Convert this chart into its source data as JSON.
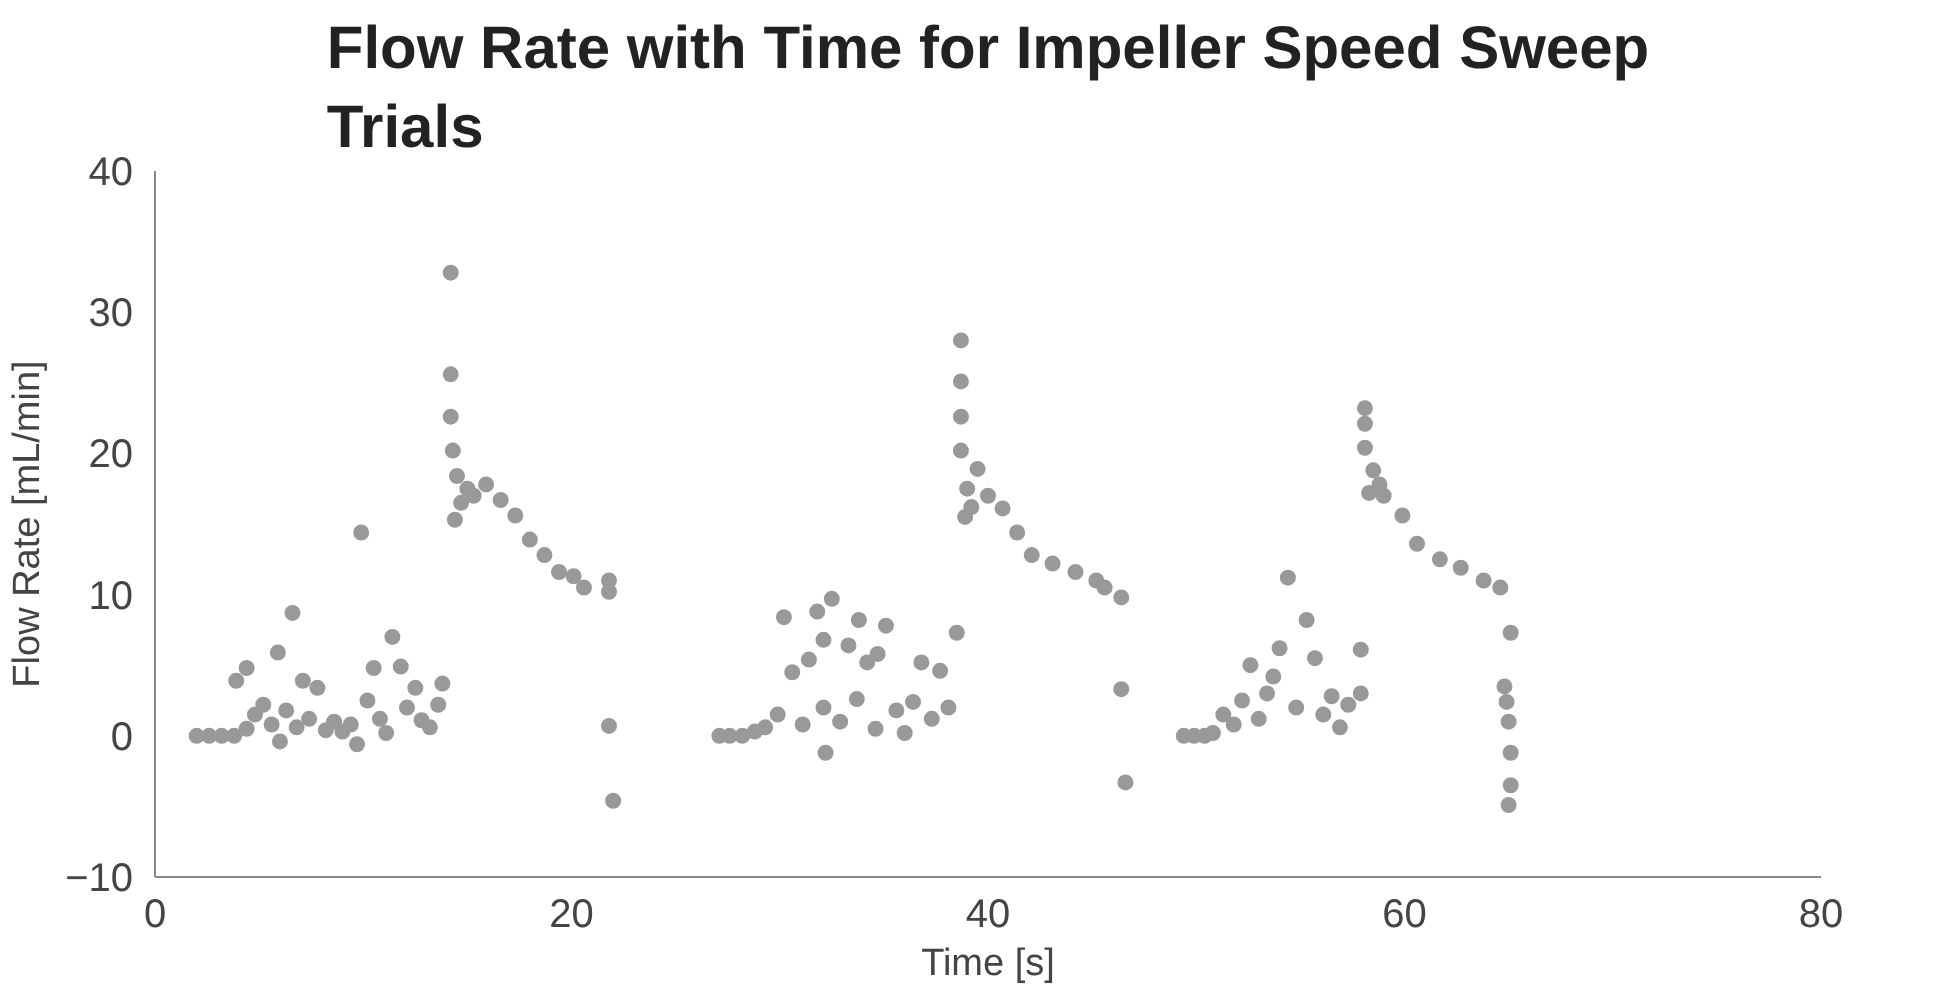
{
  "chart_data": {
    "type": "scatter",
    "title": "Flow Rate with Time for Impeller Speed Sweep Trials",
    "xlabel": "Time [s]",
    "ylabel": "Flow Rate [mL/min]",
    "xlim": [
      0,
      80
    ],
    "ylim": [
      -10,
      40
    ],
    "xticks": [
      0,
      20,
      40,
      60,
      80
    ],
    "yticks": [
      -10,
      0,
      10,
      20,
      30,
      40
    ],
    "grid": false,
    "marker": "circle",
    "series": [
      {
        "color": "#999999",
        "x": [
          2.0,
          2.6,
          3.2,
          3.8,
          4.4,
          3.9,
          4.4,
          4.8,
          5.2,
          5.6,
          5.9,
          6.0,
          6.3,
          6.6,
          6.8,
          7.1,
          7.4,
          7.8,
          8.2,
          8.6,
          9.0,
          9.4,
          9.7,
          9.9,
          10.2,
          10.5,
          10.8,
          11.1,
          11.4,
          11.8,
          12.1,
          12.5,
          12.8,
          13.2,
          13.8,
          13.6,
          14.2,
          14.2,
          14.2,
          14.3,
          14.4,
          14.5,
          14.7,
          15.0,
          15.3,
          15.9,
          16.6,
          17.3,
          18.0,
          18.7,
          19.4,
          20.1,
          20.6,
          21.8,
          21.8,
          21.8,
          22.0,
          27.1,
          27.6,
          28.2,
          28.8,
          29.3,
          29.9,
          30.2,
          30.6,
          31.1,
          31.4,
          31.8,
          32.1,
          32.1,
          32.2,
          32.5,
          32.9,
          33.3,
          33.7,
          33.8,
          34.2,
          34.6,
          34.7,
          35.1,
          35.6,
          36.0,
          36.4,
          36.8,
          37.3,
          37.7,
          38.1,
          38.5,
          38.7,
          38.7,
          38.7,
          38.7,
          38.9,
          39.0,
          39.2,
          39.5,
          40.0,
          40.7,
          41.4,
          42.1,
          43.1,
          44.2,
          45.2,
          45.6,
          46.4,
          46.4,
          46.6,
          49.4,
          49.9,
          50.4,
          50.8,
          51.3,
          51.8,
          52.2,
          52.6,
          53.0,
          53.4,
          53.7,
          54.0,
          54.4,
          54.8,
          55.3,
          55.7,
          56.1,
          56.5,
          56.9,
          57.3,
          57.9,
          57.9,
          58.1,
          58.1,
          58.1,
          58.3,
          58.5,
          58.8,
          59.0,
          59.9,
          60.6,
          61.7,
          62.7,
          63.8,
          64.6,
          64.8,
          64.9,
          65.0,
          65.1,
          65.1,
          65.1,
          65.0
        ],
        "values": [
          0,
          0,
          0,
          0,
          0.5,
          3.9,
          4.8,
          1.5,
          2.2,
          0.8,
          5.9,
          -0.4,
          1.8,
          8.7,
          0.6,
          3.9,
          1.2,
          3.4,
          0.4,
          1.0,
          0.3,
          0.8,
          -0.6,
          14.4,
          2.5,
          4.8,
          1.2,
          0.2,
          7.0,
          4.9,
          2.0,
          3.4,
          1.1,
          0.6,
          3.7,
          2.2,
          32.8,
          25.6,
          22.6,
          20.2,
          15.3,
          18.4,
          16.5,
          17.5,
          17.0,
          17.8,
          16.7,
          15.6,
          13.9,
          12.8,
          11.6,
          11.3,
          10.5,
          11.0,
          10.2,
          0.7,
          -4.6,
          0,
          0,
          0,
          0.3,
          0.6,
          1.5,
          8.4,
          4.5,
          0.8,
          5.4,
          8.8,
          2.0,
          6.8,
          -1.2,
          9.7,
          1.0,
          6.4,
          2.6,
          8.2,
          5.2,
          0.5,
          5.8,
          7.8,
          1.8,
          0.2,
          2.4,
          5.2,
          1.2,
          4.6,
          2.0,
          7.3,
          28.0,
          25.1,
          22.6,
          20.2,
          15.5,
          17.5,
          16.2,
          18.9,
          17.0,
          16.1,
          14.4,
          12.8,
          12.2,
          11.6,
          11.0,
          10.5,
          9.8,
          3.3,
          -3.3,
          0,
          0,
          0,
          0.2,
          1.5,
          0.8,
          2.5,
          5.0,
          1.2,
          3.0,
          4.2,
          6.2,
          11.2,
          2.0,
          8.2,
          5.5,
          1.5,
          2.8,
          0.6,
          2.2,
          6.1,
          3.0,
          23.2,
          22.1,
          20.4,
          17.2,
          18.8,
          17.8,
          17.0,
          15.6,
          13.6,
          12.5,
          11.9,
          11.0,
          10.5,
          3.5,
          2.4,
          1.0,
          7.3,
          -1.2,
          -3.5,
          -4.9
        ]
      }
    ]
  }
}
